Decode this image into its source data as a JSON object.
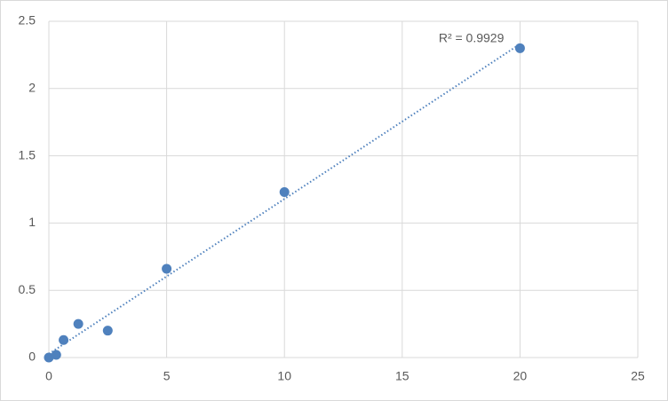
{
  "chart_data": {
    "type": "scatter",
    "x": [
      0,
      0.3125,
      0.625,
      1.25,
      2.5,
      5,
      10,
      20
    ],
    "series": [
      {
        "color": "#4f81bd",
        "values": [
          0,
          0.02,
          0.13,
          0.25,
          0.2,
          0.66,
          1.23,
          2.3
        ]
      }
    ],
    "xlim": [
      0,
      25
    ],
    "xticks": [
      0,
      5,
      10,
      15,
      20,
      25
    ],
    "ylim": [
      0,
      2.5
    ],
    "yticks": [
      0,
      0.5,
      1,
      1.5,
      2,
      2.5
    ],
    "grid": true,
    "trendline": {
      "type": "linear",
      "label": "R² = 0.9929"
    }
  }
}
